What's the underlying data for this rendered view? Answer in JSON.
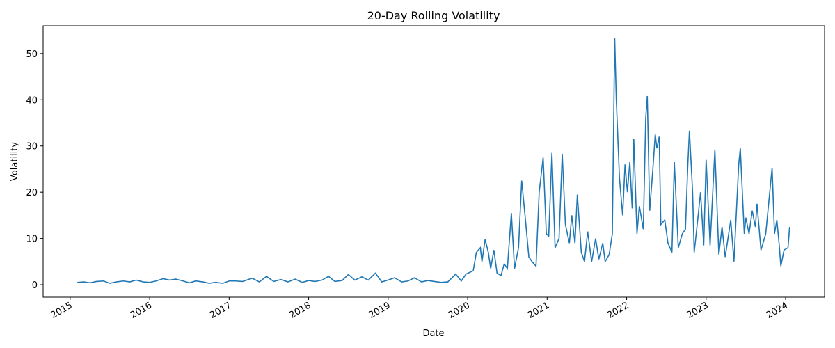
{
  "chart_data": {
    "type": "line",
    "title": "20-Day Rolling Volatility",
    "x_label": "Date",
    "y_label": "Volatility",
    "x": [
      2015.09,
      2015.17,
      2015.25,
      2015.33,
      2015.42,
      2015.5,
      2015.58,
      2015.67,
      2015.75,
      2015.83,
      2015.92,
      2016.0,
      2016.08,
      2016.17,
      2016.25,
      2016.33,
      2016.42,
      2016.5,
      2016.58,
      2016.67,
      2016.75,
      2016.83,
      2016.92,
      2017.0,
      2017.08,
      2017.17,
      2017.29,
      2017.38,
      2017.47,
      2017.56,
      2017.65,
      2017.74,
      2017.83,
      2017.92,
      2018.0,
      2018.08,
      2018.17,
      2018.25,
      2018.33,
      2018.42,
      2018.5,
      2018.58,
      2018.67,
      2018.75,
      2018.84,
      2018.92,
      2019.0,
      2019.08,
      2019.17,
      2019.25,
      2019.33,
      2019.42,
      2019.5,
      2019.58,
      2019.67,
      2019.75,
      2019.85,
      2019.92,
      2019.98,
      2020.07,
      2020.11,
      2020.16,
      2020.18,
      2020.22,
      2020.26,
      2020.29,
      2020.33,
      2020.37,
      2020.42,
      2020.46,
      2020.5,
      2020.55,
      2020.59,
      2020.64,
      2020.68,
      2020.73,
      2020.77,
      2020.81,
      2020.86,
      2020.9,
      2020.95,
      2020.99,
      2021.02,
      2021.06,
      2021.1,
      2021.15,
      2021.19,
      2021.23,
      2021.28,
      2021.31,
      2021.35,
      2021.38,
      2021.43,
      2021.47,
      2021.51,
      2021.56,
      2021.61,
      2021.65,
      2021.7,
      2021.73,
      2021.78,
      2021.82,
      2021.85,
      2021.87,
      2021.91,
      2021.95,
      2021.98,
      2022.01,
      2022.04,
      2022.07,
      2022.09,
      2022.13,
      2022.16,
      2022.21,
      2022.24,
      2022.26,
      2022.29,
      2022.33,
      2022.36,
      2022.38,
      2022.41,
      2022.43,
      2022.48,
      2022.52,
      2022.57,
      2022.6,
      2022.65,
      2022.7,
      2022.74,
      2022.77,
      2022.79,
      2022.83,
      2022.85,
      2022.9,
      2022.93,
      2022.97,
      2023.0,
      2023.05,
      2023.11,
      2023.16,
      2023.2,
      2023.24,
      2023.31,
      2023.35,
      2023.41,
      2023.43,
      2023.48,
      2023.5,
      2023.54,
      2023.58,
      2023.62,
      2023.64,
      2023.69,
      2023.75,
      2023.83,
      2023.86,
      2023.89,
      2023.92,
      2023.94,
      2023.98,
      2024.03,
      2024.05
    ],
    "series": [
      {
        "name": "Volatility",
        "color": "#1f77b4",
        "values": [
          0.5,
          0.6,
          0.4,
          0.7,
          0.8,
          0.3,
          0.6,
          0.8,
          0.6,
          1.0,
          0.6,
          0.5,
          0.8,
          1.3,
          1.0,
          1.2,
          0.8,
          0.4,
          0.8,
          0.6,
          0.3,
          0.5,
          0.3,
          0.8,
          0.8,
          0.7,
          1.4,
          0.6,
          1.8,
          0.7,
          1.1,
          0.6,
          1.2,
          0.5,
          0.9,
          0.7,
          1.0,
          1.8,
          0.7,
          0.9,
          2.2,
          1.0,
          1.7,
          1.0,
          2.5,
          0.6,
          1.0,
          1.5,
          0.6,
          0.8,
          1.5,
          0.6,
          0.9,
          0.7,
          0.5,
          0.6,
          2.3,
          0.8,
          2.3,
          3.0,
          7.0,
          8.0,
          5.0,
          9.8,
          7.0,
          3.5,
          7.5,
          2.5,
          2.0,
          4.5,
          3.5,
          15.5,
          3.5,
          8.0,
          22.5,
          13.5,
          6.0,
          5.0,
          4.0,
          20.0,
          27.5,
          11.0,
          10.5,
          28.5,
          8.0,
          10.0,
          28.3,
          13.0,
          9.0,
          15.0,
          9.0,
          19.5,
          7.0,
          5.0,
          11.5,
          5.0,
          10.0,
          5.5,
          9.0,
          5.0,
          6.5,
          11.0,
          53.3,
          40.0,
          23.0,
          15.0,
          26.0,
          20.0,
          26.5,
          16.5,
          31.5,
          11.0,
          17.0,
          12.0,
          36.0,
          40.8,
          16.0,
          25.0,
          32.5,
          29.5,
          32.0,
          13.0,
          14.0,
          9.0,
          7.0,
          26.5,
          8.0,
          11.0,
          12.0,
          26.0,
          33.3,
          20.0,
          7.0,
          15.0,
          20.0,
          8.5,
          27.0,
          8.5,
          29.2,
          6.5,
          12.5,
          6.0,
          14.0,
          5.0,
          26.0,
          29.5,
          11.0,
          14.5,
          11.0,
          16.0,
          12.5,
          17.5,
          7.5,
          11.0,
          25.3,
          11.0,
          14.0,
          8.5,
          4.0,
          7.5,
          8.0,
          12.5
        ]
      }
    ],
    "xlim": [
      2014.66,
      2024.49
    ],
    "xticks": [
      2015,
      2016,
      2017,
      2018,
      2019,
      2020,
      2021,
      2022,
      2023,
      2024
    ],
    "ylim": [
      -2.7,
      56.0
    ],
    "yticks": [
      0,
      10,
      20,
      30,
      40,
      50
    ],
    "grid": false
  }
}
